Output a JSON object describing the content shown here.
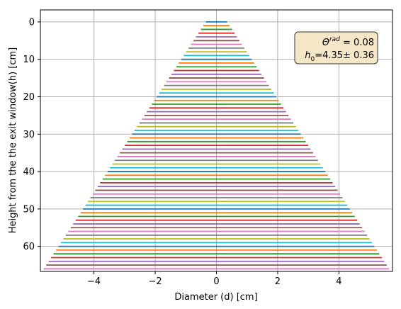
{
  "chart_data": {
    "type": "line",
    "title": "",
    "xlabel": "Diameter (d) [cm]",
    "ylabel": "Height from the the exit window(h) [cm]",
    "xlim": [
      -5.75,
      5.75
    ],
    "ylim": [
      66.7,
      -3.2
    ],
    "y_inverted": true,
    "grid": true,
    "xticks": [
      -4,
      -2,
      0,
      2,
      4
    ],
    "xtick_labels": [
      "−4",
      "−2",
      "0",
      "2",
      "4"
    ],
    "yticks": [
      0,
      10,
      20,
      30,
      40,
      50,
      60
    ],
    "ytick_labels": [
      "0",
      "10",
      "20",
      "30",
      "40",
      "50",
      "60"
    ],
    "annotation": {
      "lines": [
        "Θ^rad = 0.08",
        "h_0=4.35± 0.36"
      ],
      "theta_symbol": "Θ",
      "theta_sup": "rad",
      "theta_value": " = 0.08",
      "h_symbol": "h",
      "h_sub": "0",
      "h_value": "=4.35± 0.36",
      "placement": "top-right",
      "facecolor": "#f5e6c8",
      "edgecolor": "#333333"
    },
    "segments": {
      "description_of_data": "Horizontal segments from x = -d/2 to x = +d/2 at each height h; d = 2*tan(theta)*(h + h0)",
      "theta_rad": 0.08,
      "h0": 4.35,
      "h_start": 0,
      "h_end": 66,
      "h_step": 1,
      "colors": [
        "#1f77b4",
        "#ff7f0e",
        "#2ca02c",
        "#d62728",
        "#9467bd",
        "#8c564b",
        "#e377c2",
        "#7f7f7f",
        "#bcbd22",
        "#17becf"
      ]
    }
  }
}
